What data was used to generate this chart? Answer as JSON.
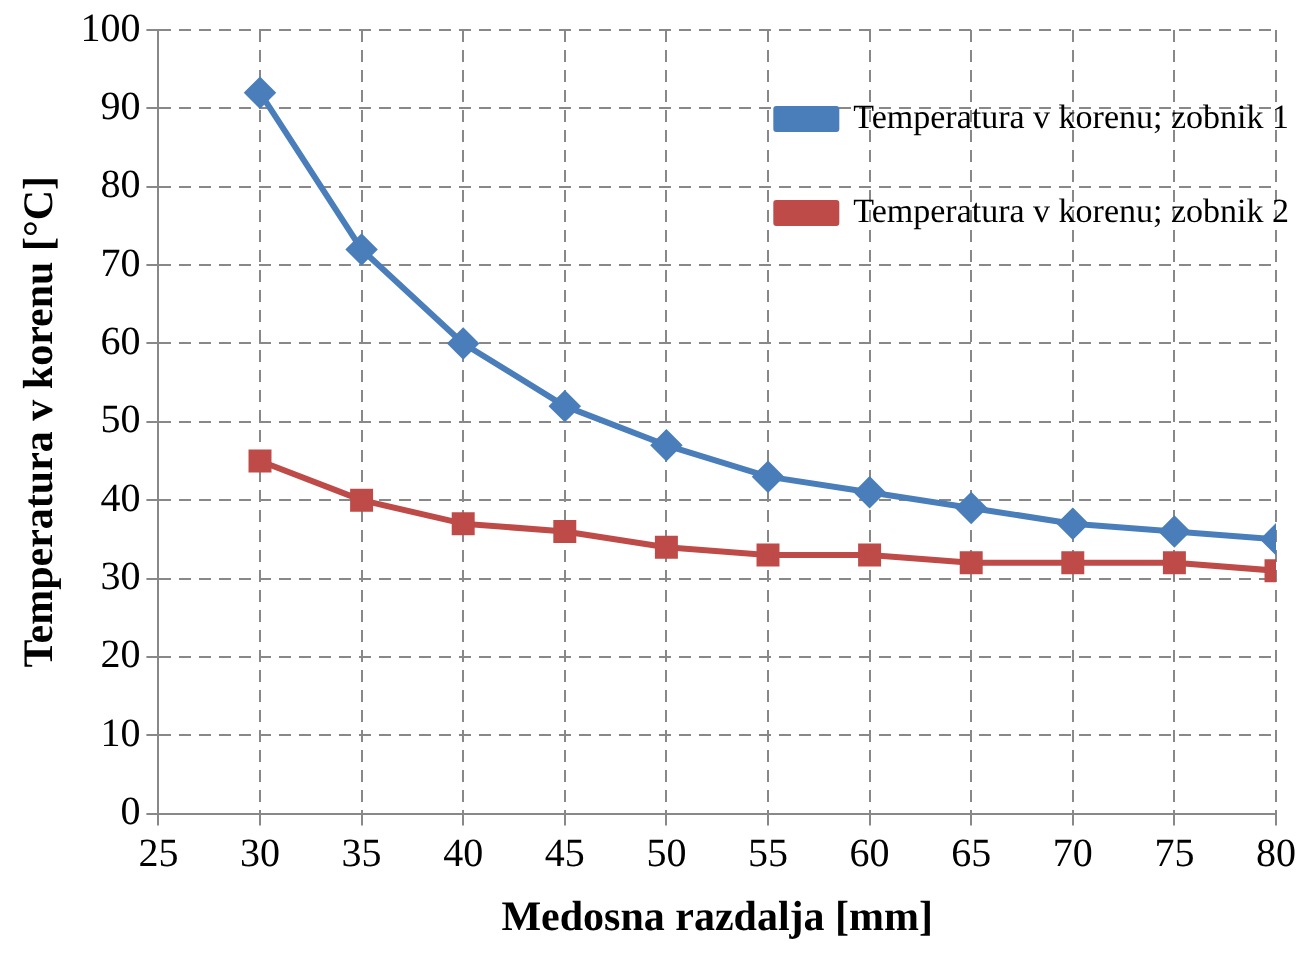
{
  "chart_data": {
    "type": "line",
    "xlabel": "Medosna razdalja [mm]",
    "ylabel": "Temperatura v korenu [°C]",
    "x": [
      30,
      35,
      40,
      45,
      50,
      55,
      60,
      65,
      70,
      75,
      80
    ],
    "series": [
      {
        "name": "Temperatura v korenu; zobnik 1",
        "color": "#4a7ebb",
        "marker": "diamond",
        "values": [
          92,
          72,
          60,
          52,
          47,
          43,
          41,
          39,
          37,
          36,
          35
        ]
      },
      {
        "name": "Temperatura v korenu; zobnik 2",
        "color": "#be4b48",
        "marker": "square",
        "values": [
          45,
          40,
          37,
          36,
          34,
          33,
          33,
          32,
          32,
          32,
          31
        ]
      }
    ],
    "xlim": [
      25,
      80
    ],
    "xticks": [
      25,
      30,
      35,
      40,
      45,
      50,
      55,
      60,
      65,
      70,
      75,
      80
    ],
    "ylim": [
      0,
      100
    ],
    "yticks": [
      0,
      10,
      20,
      30,
      40,
      50,
      60,
      70,
      80,
      90,
      100
    ],
    "grid": true,
    "legend": "top right",
    "line_style": "solid"
  }
}
